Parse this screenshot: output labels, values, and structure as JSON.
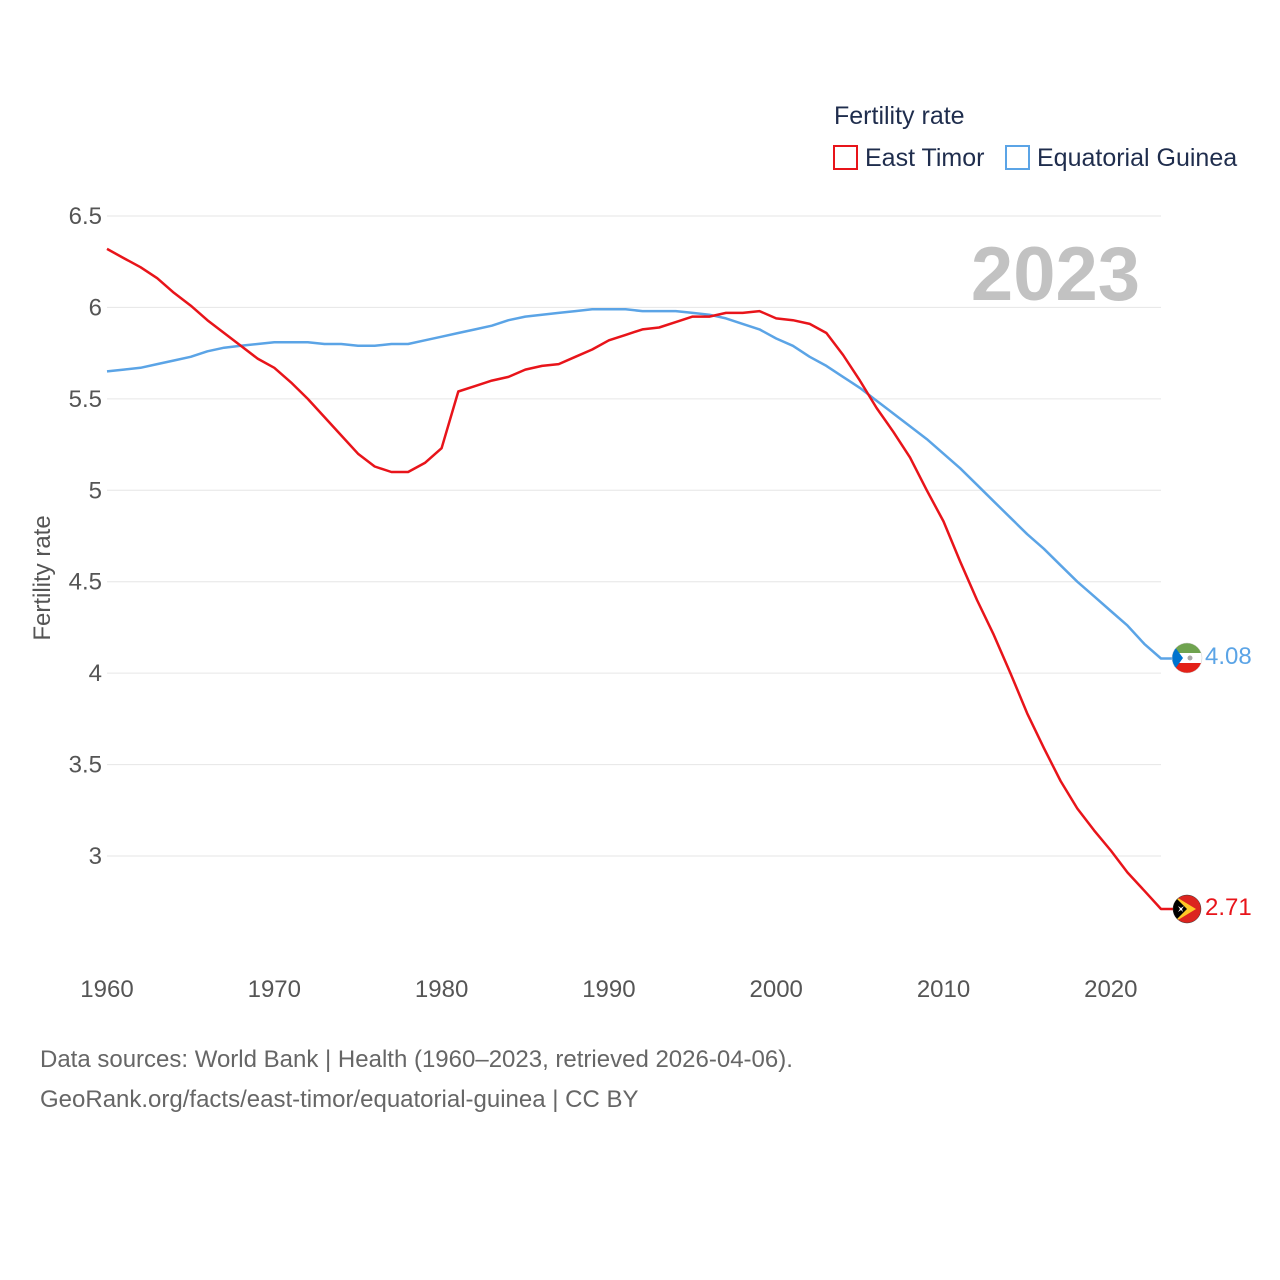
{
  "chart_data": {
    "type": "line",
    "title": "",
    "xlabel": "",
    "ylabel": "Fertility rate",
    "xlim": [
      1960,
      2024
    ],
    "ylim": [
      2.5,
      6.55
    ],
    "x_ticks": [
      "1960",
      "1970",
      "1980",
      "1990",
      "2000",
      "2010",
      "2020"
    ],
    "y_ticks": [
      "3",
      "3.5",
      "4",
      "4.5",
      "5",
      "5.5",
      "6",
      "6.5"
    ],
    "legend_title": "Fertility rate",
    "legend_position": "top-right",
    "year_label": "2023",
    "x": [
      1960,
      1961,
      1962,
      1963,
      1964,
      1965,
      1966,
      1967,
      1968,
      1969,
      1970,
      1971,
      1972,
      1973,
      1974,
      1975,
      1976,
      1977,
      1978,
      1979,
      1980,
      1981,
      1982,
      1983,
      1984,
      1985,
      1986,
      1987,
      1988,
      1989,
      1990,
      1991,
      1992,
      1993,
      1994,
      1995,
      1996,
      1997,
      1998,
      1999,
      2000,
      2001,
      2002,
      2003,
      2004,
      2005,
      2006,
      2007,
      2008,
      2009,
      2010,
      2011,
      2012,
      2013,
      2014,
      2015,
      2016,
      2017,
      2018,
      2019,
      2020,
      2021,
      2022,
      2023
    ],
    "series": [
      {
        "name": "East Timor",
        "color": "#e8141a",
        "end_label": "2.71",
        "flag": "east-timor-flag-icon",
        "values": [
          6.32,
          6.27,
          6.22,
          6.16,
          6.08,
          6.01,
          5.93,
          5.86,
          5.79,
          5.72,
          5.67,
          5.59,
          5.5,
          5.4,
          5.3,
          5.2,
          5.13,
          5.1,
          5.1,
          5.15,
          5.23,
          5.54,
          5.57,
          5.6,
          5.62,
          5.66,
          5.68,
          5.69,
          5.73,
          5.77,
          5.82,
          5.85,
          5.88,
          5.89,
          5.92,
          5.95,
          5.95,
          5.97,
          5.97,
          5.98,
          5.94,
          5.93,
          5.91,
          5.86,
          5.74,
          5.6,
          5.45,
          5.32,
          5.18,
          5.0,
          4.83,
          4.61,
          4.4,
          4.21,
          4.0,
          3.78,
          3.59,
          3.41,
          3.26,
          3.14,
          3.03,
          2.91,
          2.81,
          2.71
        ]
      },
      {
        "name": "Equatorial Guinea",
        "color": "#5ba4e6",
        "end_label": "4.08",
        "flag": "equatorial-guinea-flag-icon",
        "values": [
          5.65,
          5.66,
          5.67,
          5.69,
          5.71,
          5.73,
          5.76,
          5.78,
          5.79,
          5.8,
          5.81,
          5.81,
          5.81,
          5.8,
          5.8,
          5.79,
          5.79,
          5.8,
          5.8,
          5.82,
          5.84,
          5.86,
          5.88,
          5.9,
          5.93,
          5.95,
          5.96,
          5.97,
          5.98,
          5.99,
          5.99,
          5.99,
          5.98,
          5.98,
          5.98,
          5.97,
          5.96,
          5.94,
          5.91,
          5.88,
          5.83,
          5.79,
          5.73,
          5.68,
          5.62,
          5.56,
          5.49,
          5.42,
          5.35,
          5.28,
          5.2,
          5.12,
          5.03,
          4.94,
          4.85,
          4.76,
          4.68,
          4.59,
          4.5,
          4.42,
          4.34,
          4.26,
          4.16,
          4.08
        ]
      }
    ]
  },
  "footer": {
    "source_line1": "Data sources: World Bank | Health (1960–2023, retrieved 2026-04-06).",
    "source_line2": "GeoRank.org/facts/east-timor/equatorial-guinea | CC BY"
  }
}
